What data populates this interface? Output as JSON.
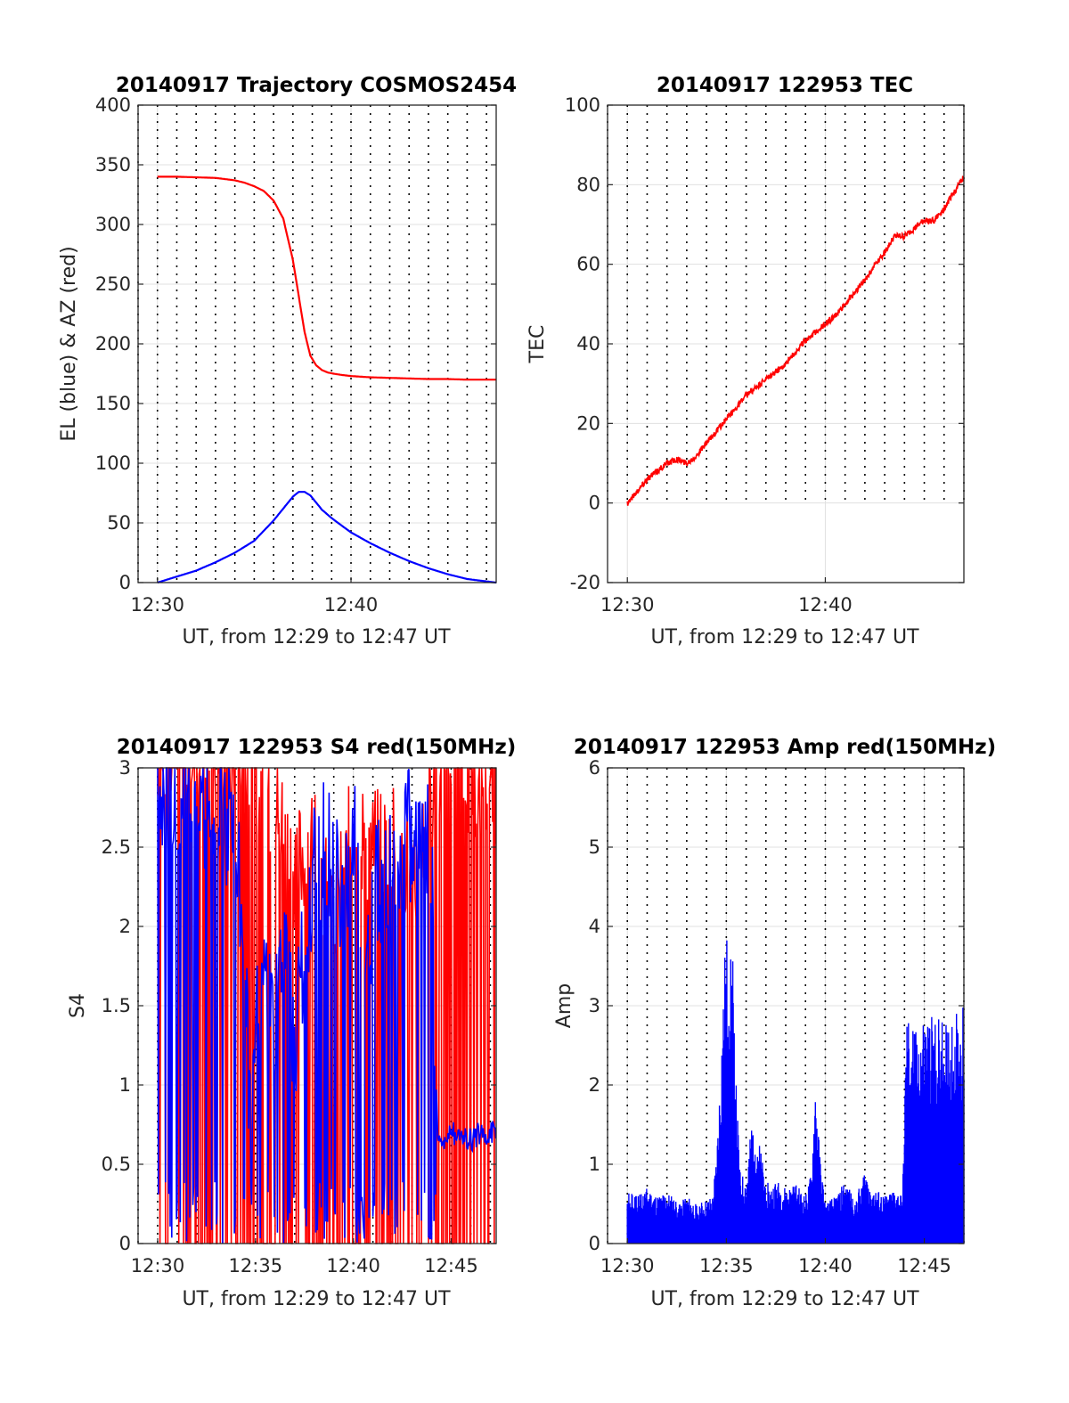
{
  "chart_data": [
    {
      "id": "trajectory",
      "type": "line",
      "title": "20140917 Trajectory COSMOS2454",
      "xlabel": "UT, from 12:29 to 12:47 UT",
      "ylabel": "EL (blue) & AZ (red)",
      "xlim": [
        0,
        18.5
      ],
      "ylim": [
        0,
        400
      ],
      "x_ticks": [
        {
          "v": 1,
          "label": "12:30"
        },
        {
          "v": 11,
          "label": "12:40"
        }
      ],
      "y_ticks": [
        0,
        50,
        100,
        150,
        200,
        250,
        300,
        350,
        400
      ],
      "y_tick_labels": [
        "0",
        "50",
        "100",
        "150",
        "200",
        "250",
        "300",
        "350",
        "400"
      ],
      "grid": true,
      "series": [
        {
          "color": "#ff0000",
          "style": "smooth",
          "x": [
            1,
            2,
            3,
            4,
            5,
            5.5,
            6,
            6.5,
            7,
            7.5,
            8,
            8.3,
            8.6,
            8.9,
            9.2,
            9.5,
            9.8,
            10.1,
            10.5,
            11,
            12,
            13,
            14,
            15,
            16,
            17,
            18.5
          ],
          "y": [
            340,
            340,
            339.5,
            339,
            337,
            335,
            332,
            328,
            320,
            305,
            270,
            240,
            210,
            190,
            182,
            178,
            176,
            175,
            174,
            173,
            172,
            171.5,
            171,
            170.5,
            170.5,
            170,
            170
          ]
        },
        {
          "color": "#0000ff",
          "style": "smooth",
          "x": [
            1,
            2,
            3,
            4,
            5,
            6,
            7,
            7.5,
            8,
            8.3,
            8.6,
            8.9,
            9.2,
            9.5,
            10,
            11,
            12,
            13,
            14,
            15,
            16,
            17,
            18.5
          ],
          "y": [
            0,
            5,
            10,
            17,
            25,
            35,
            52,
            62,
            72,
            76,
            76,
            73,
            67,
            61,
            54,
            42,
            33,
            25,
            18,
            12,
            7,
            3,
            0
          ]
        }
      ]
    },
    {
      "id": "tec",
      "type": "line",
      "title": "20140917 122953 TEC",
      "xlabel": "UT, from 12:29 to 12:47 UT",
      "ylabel": "TEC",
      "xlim": [
        0,
        18
      ],
      "ylim": [
        -20,
        100
      ],
      "x_ticks": [
        {
          "v": 1,
          "label": "12:30"
        },
        {
          "v": 11,
          "label": "12:40"
        }
      ],
      "y_ticks": [
        -20,
        0,
        20,
        40,
        60,
        80,
        100
      ],
      "y_tick_labels": [
        "-20",
        "0",
        "20",
        "40",
        "60",
        "80",
        "100"
      ],
      "grid": true,
      "series": [
        {
          "color": "#ff0000",
          "style": "noisy",
          "x": [
            1,
            1.5,
            2,
            2.5,
            3,
            3.5,
            4,
            4.5,
            5,
            5.5,
            6,
            6.5,
            7,
            7.5,
            8,
            8.5,
            9,
            9.5,
            10,
            10.5,
            11,
            11.5,
            12,
            12.5,
            13,
            13.5,
            14,
            14.5,
            15,
            15.5,
            16,
            16.5,
            17,
            17.5,
            18
          ],
          "y": [
            0,
            3,
            6,
            8,
            10,
            11,
            10,
            12,
            15,
            18,
            21,
            24,
            27,
            29,
            31,
            33,
            35,
            38,
            41,
            43,
            45,
            47,
            50,
            53,
            56,
            60,
            63,
            67,
            67,
            69,
            71,
            71,
            74,
            78,
            82
          ]
        }
      ]
    },
    {
      "id": "s4",
      "type": "line",
      "title": "20140917 122953 S4 red(150MHz)",
      "xlabel": "UT, from 12:29 to 12:47 UT",
      "ylabel": "S4",
      "xlim": [
        0,
        18.3
      ],
      "ylim": [
        0,
        3
      ],
      "x_ticks": [
        {
          "v": 1,
          "label": "12:30"
        },
        {
          "v": 6,
          "label": "12:35"
        },
        {
          "v": 11,
          "label": "12:40"
        },
        {
          "v": 16,
          "label": "12:45"
        }
      ],
      "y_ticks": [
        0,
        0.5,
        1,
        1.5,
        2,
        2.5,
        3
      ],
      "y_tick_labels": [
        "0",
        "0.5",
        "1",
        "1.5",
        "2",
        "2.5",
        "3"
      ],
      "grid": true,
      "series": [
        {
          "color": "#ff0000",
          "style": "spiky",
          "x": [
            1,
            2,
            3,
            4,
            5,
            5.5,
            6,
            7,
            8,
            9,
            10,
            11,
            12,
            13,
            14,
            15,
            15.5,
            16,
            17,
            18.3
          ],
          "y": [
            3,
            3,
            3,
            3,
            3,
            3,
            2.8,
            2.6,
            2.2,
            2.4,
            1.8,
            2.5,
            2.3,
            2.4,
            2.2,
            2.6,
            3,
            3,
            2.8,
            2.7
          ]
        },
        {
          "color": "#0000ff",
          "style": "spiky",
          "x": [
            1,
            2,
            3,
            4,
            5,
            5.5,
            5.8,
            6,
            6.5,
            7,
            7.5,
            8,
            8.5,
            9,
            9.5,
            10,
            10.5,
            11,
            11.5,
            12,
            12.5,
            13,
            13.5,
            14,
            14.5,
            15,
            15.2,
            15.3,
            15.5,
            16,
            16.5,
            17,
            17.5,
            18.3
          ],
          "y": [
            2.9,
            2.9,
            2.8,
            2.8,
            2.6,
            1.5,
            0.6,
            1.4,
            1.6,
            1.3,
            1.8,
            1.2,
            1.9,
            2.3,
            2.5,
            2.4,
            2.1,
            2.6,
            1.7,
            2.1,
            2.4,
            2.3,
            2.5,
            2.6,
            2.5,
            2.6,
            1.2,
            0.7,
            0.65,
            0.7,
            0.68,
            0.65,
            0.7,
            0.7
          ]
        }
      ]
    },
    {
      "id": "amp",
      "type": "line",
      "title": "20140917 122953 Amp red(150MHz)",
      "xlabel": "UT, from 12:29 to 12:47 UT",
      "ylabel": "Amp",
      "xlim": [
        0,
        18
      ],
      "ylim": [
        0,
        6
      ],
      "x_ticks": [
        {
          "v": 1,
          "label": "12:30"
        },
        {
          "v": 6,
          "label": "12:35"
        },
        {
          "v": 11,
          "label": "12:40"
        },
        {
          "v": 16,
          "label": "12:45"
        }
      ],
      "y_ticks": [
        0,
        1,
        2,
        3,
        4,
        5,
        6
      ],
      "y_tick_labels": [
        "0",
        "1",
        "2",
        "3",
        "4",
        "5",
        "6"
      ],
      "grid": true,
      "series": [
        {
          "color": "#0000ff",
          "style": "bars",
          "x": [
            1,
            1.5,
            2,
            2.5,
            3,
            3.5,
            4,
            4.5,
            5,
            5.3,
            5.5,
            5.7,
            5.9,
            6.1,
            6.3,
            6.5,
            6.7,
            7,
            7.3,
            7.6,
            7.9,
            8.2,
            8.5,
            9,
            9.5,
            10,
            10.3,
            10.5,
            10.7,
            11,
            11.5,
            12,
            12.5,
            13,
            13.5,
            14,
            14.5,
            14.9,
            15.1,
            15.5,
            16,
            16.5,
            17,
            17.5,
            18
          ],
          "y": [
            0.65,
            0.6,
            0.7,
            0.6,
            0.65,
            0.55,
            0.6,
            0.5,
            0.55,
            0.6,
            1.1,
            2.2,
            3.6,
            4.1,
            3.9,
            2.0,
            0.9,
            0.8,
            1.6,
            1.4,
            0.9,
            0.7,
            0.8,
            0.7,
            0.75,
            0.6,
            0.9,
            2.1,
            1.2,
            0.5,
            0.6,
            0.8,
            0.55,
            0.95,
            0.7,
            0.6,
            0.7,
            0.6,
            2.9,
            2.8,
            2.9,
            2.9,
            2.8,
            2.9,
            3.0
          ]
        }
      ]
    }
  ]
}
